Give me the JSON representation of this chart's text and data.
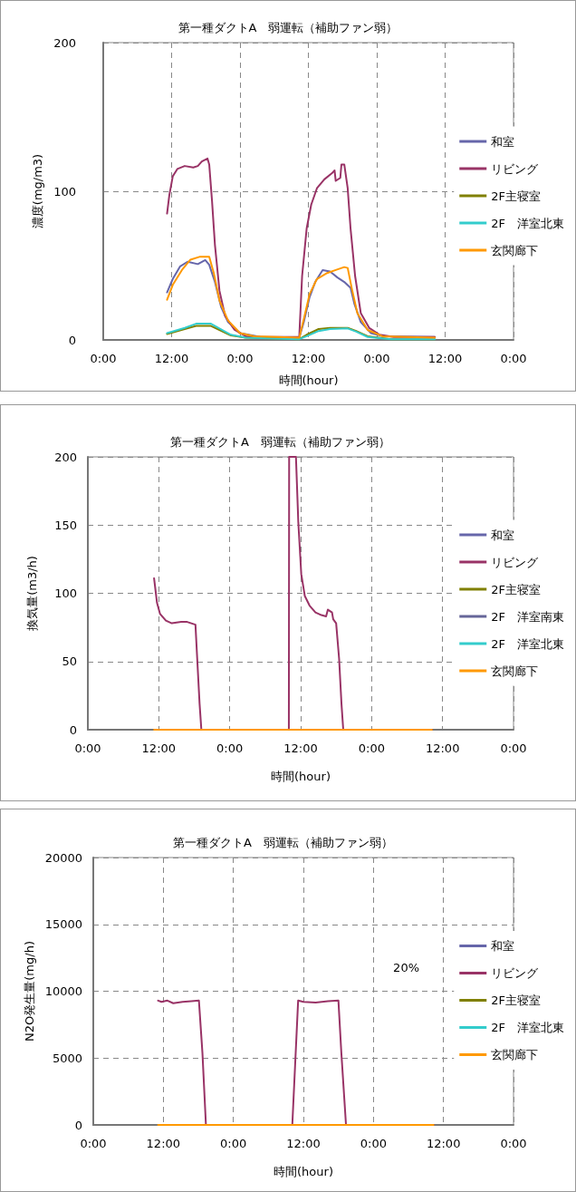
{
  "chart_data": [
    {
      "type": "line",
      "title": "第一種ダクトA　弱運転（補助ファン弱）",
      "xlabel": "時間(hour)",
      "ylabel": "濃度(mg/m3)",
      "xlim": [
        "--01-01T00:00",
        "--01-04T00:00"
      ],
      "xticks": [
        {
          "value": "--01-01T00:00",
          "label": "0:00"
        },
        {
          "value": "--01-01T12:00",
          "label": "12:00"
        },
        {
          "value": "--01-02T00:00",
          "label": "0:00"
        },
        {
          "value": "--01-02T12:00",
          "label": "12:00"
        },
        {
          "value": "--01-03T00:00",
          "label": "0:00"
        },
        {
          "value": "--01-03T12:00",
          "label": "12:00"
        },
        {
          "value": "--01-04T00:00",
          "label": "0:00"
        }
      ],
      "ylim": [
        0,
        200
      ],
      "yticks": [
        0,
        100,
        200
      ],
      "grid": true,
      "legend": "right",
      "marker": "none",
      "line_style": "solid",
      "series": [
        {
          "name": "和室",
          "color": "#6666aa",
          "x": [
            "--01-01T11:12",
            "--01-01T12:12",
            "--01-01T13:30",
            "--01-01T14:48",
            "--01-01T16:36",
            "--01-01T17:54",
            "--01-01T18:36",
            "--01-01T19:36",
            "--01-01T20:42",
            "--01-01T21:54",
            "--01-02T00:00",
            "--01-02T03:36",
            "--01-02T10:24",
            "--01-02T11:12",
            "--01-02T12:12",
            "--01-02T13:12",
            "--01-02T14:30",
            "--01-02T15:48",
            "--01-02T17:06",
            "--01-02T18:18",
            "--01-02T19:24",
            "--01-02T20:06",
            "--01-02T21:12",
            "--01-02T23:00",
            "--01-03T01:00",
            "--01-03T10:12"
          ],
          "values": [
            32,
            41,
            49.5,
            52.6,
            51,
            53.7,
            50.5,
            39,
            22,
            12,
            4.6,
            2,
            1.5,
            12,
            28.6,
            39,
            47,
            46,
            42,
            39,
            35,
            24,
            12,
            4.6,
            2.5,
            2
          ]
        },
        {
          "name": "リビング",
          "color": "#993366",
          "x": [
            "--01-01T11:12",
            "--01-01T11:36",
            "--01-01T12:12",
            "--01-01T13:00",
            "--01-01T14:18",
            "--01-01T15:48",
            "--01-01T16:36",
            "--01-01T17:18",
            "--01-01T18:18",
            "--01-01T18:36",
            "--01-01T19:06",
            "--01-01T19:36",
            "--01-01T20:24",
            "--01-01T21:24",
            "--01-01T23:00",
            "--01-02T01:00",
            "--01-02T03:36",
            "--01-02T06:36",
            "--01-02T10:24",
            "--01-02T10:54",
            "--01-02T11:42",
            "--01-02T12:30",
            "--01-02T13:30",
            "--01-02T14:48",
            "--01-02T16:06",
            "--01-02T16:36",
            "--01-02T16:48",
            "--01-02T17:36",
            "--01-02T17:48",
            "--01-02T18:18",
            "--01-02T18:54",
            "--01-02T19:24",
            "--01-02T20:12",
            "--01-02T21:12",
            "--01-02T22:42",
            "--01-03T00:30",
            "--01-03T03:00",
            "--01-03T10:12"
          ],
          "values": [
            85,
            97.5,
            110,
            115,
            117,
            116,
            117,
            120,
            122,
            118,
            93,
            64,
            33,
            16,
            7,
            2.5,
            2,
            2,
            2,
            43,
            75,
            91,
            102,
            108,
            112,
            114,
            107,
            109,
            118,
            118,
            102,
            75,
            43,
            18,
            8,
            3.5,
            2,
            2
          ]
        },
        {
          "name": "2F主寝室",
          "color": "#808000",
          "x": [
            "--01-01T11:12",
            "--01-01T14:18",
            "--01-01T16:18",
            "--01-01T18:54",
            "--01-01T20:24",
            "--01-01T22:24",
            "--01-02T01:00",
            "--01-02T10:24",
            "--01-02T11:42",
            "--01-02T13:48",
            "--01-02T15:48",
            "--01-02T18:54",
            "--01-02T20:24",
            "--01-02T22:24",
            "--01-03T02:30",
            "--01-03T10:12"
          ],
          "values": [
            4,
            7.3,
            9.4,
            9.4,
            6.7,
            3,
            1.5,
            0.5,
            3.5,
            7.3,
            8.1,
            8.1,
            6,
            2.5,
            0.5,
            0.5
          ]
        },
        {
          "name": "2F　洋室北東",
          "color": "#33cccc",
          "x": [
            "--01-01T11:12",
            "--01-01T14:18",
            "--01-01T16:18",
            "--01-01T18:54",
            "--01-01T20:24",
            "--01-01T22:24",
            "--01-02T01:00",
            "--01-02T10:24",
            "--01-02T11:42",
            "--01-02T13:48",
            "--01-02T15:48",
            "--01-02T18:54",
            "--01-02T20:24",
            "--01-02T22:24",
            "--01-03T02:30",
            "--01-03T10:12"
          ],
          "values": [
            4.6,
            8.1,
            10.9,
            10.9,
            7.7,
            3.5,
            1.5,
            0.5,
            2.5,
            6,
            7.3,
            7.7,
            5.6,
            2,
            0.5,
            0.5
          ]
        },
        {
          "name": "玄関廊下",
          "color": "#ff9900",
          "x": [
            "--01-01T11:12",
            "--01-01T12:12",
            "--01-01T13:48",
            "--01-01T15:18",
            "--01-01T17:00",
            "--01-01T18:36",
            "--01-01T19:24",
            "--01-01T20:24",
            "--01-01T21:54",
            "--01-02T00:00",
            "--01-02T02:30",
            "--01-02T10:24",
            "--01-02T11:12",
            "--01-02T12:12",
            "--01-02T13:30",
            "--01-02T15:18",
            "--01-02T16:48",
            "--01-02T18:18",
            "--01-02T18:54",
            "--01-02T19:36",
            "--01-02T20:36",
            "--01-02T22:24",
            "--01-03T01:00",
            "--01-03T10:12"
          ],
          "values": [
            27,
            37,
            47,
            54,
            56,
            56,
            45,
            26.5,
            13,
            4.6,
            2.5,
            1.5,
            14,
            30.7,
            41,
            45,
            47,
            49,
            48.4,
            35,
            18,
            6.7,
            2.5,
            1.5
          ]
        }
      ]
    },
    {
      "type": "line",
      "title": "第一種ダクトA　弱運転（補助ファン弱）",
      "xlabel": "時間(hour)",
      "ylabel": "換気量(m3/h)",
      "xlim": [
        "--01-01T00:00",
        "--01-04T00:00"
      ],
      "xticks": [
        {
          "value": "--01-01T00:00",
          "label": "0:00"
        },
        {
          "value": "--01-01T12:00",
          "label": "12:00"
        },
        {
          "value": "--01-02T00:00",
          "label": "0:00"
        },
        {
          "value": "--01-02T12:00",
          "label": "12:00"
        },
        {
          "value": "--01-03T00:00",
          "label": "0:00"
        },
        {
          "value": "--01-03T12:00",
          "label": "12:00"
        },
        {
          "value": "--01-04T00:00",
          "label": "0:00"
        }
      ],
      "ylim": [
        0,
        200
      ],
      "yticks": [
        0,
        50,
        100,
        150,
        200
      ],
      "grid": true,
      "legend": "right",
      "marker": "none",
      "line_style": "solid",
      "series": [
        {
          "name": "和室",
          "color": "#6666aa",
          "values": [
            null
          ]
        },
        {
          "name": "リビング",
          "color": "#993366",
          "x": [
            "--01-01T11:12",
            "--01-01T11:42",
            "--01-01T12:12",
            "--01-01T13:12",
            "--01-01T14:12",
            "--01-01T15:48",
            "--01-01T16:48",
            "--01-01T17:30",
            "--01-01T18:12",
            "--01-01T18:30",
            "--01-01T18:54",
            "--01-01T19:12",
            "--01-02T10:00",
            "--01-02T10:03",
            "--01-02T11:12",
            "--01-02T11:36",
            "--01-02T12:06",
            "--01-02T12:42",
            "--01-02T13:30",
            "--01-02T14:30",
            "--01-02T15:30",
            "--01-02T16:18",
            "--01-02T16:36",
            "--01-02T17:18",
            "--01-02T17:30",
            "--01-02T18:00",
            "--01-02T18:30",
            "--01-02T18:54",
            "--01-02T19:12",
            "--01-03T10:12"
          ],
          "values": [
            111,
            93,
            85,
            80,
            78,
            79,
            79,
            78,
            77,
            52,
            19,
            0,
            0,
            200,
            200,
            152,
            114,
            98,
            91,
            86,
            84,
            83,
            88,
            86,
            81,
            78,
            52,
            19,
            0,
            0
          ]
        },
        {
          "name": "2F主寝室",
          "color": "#808000",
          "values": [
            null
          ]
        },
        {
          "name": "2F　洋室南東",
          "color": "#666699",
          "values": [
            null
          ]
        },
        {
          "name": "2F　洋室北東",
          "color": "#33cccc",
          "values": [
            null
          ]
        },
        {
          "name": "玄関廊下",
          "color": "#ff9900",
          "x": [
            "--01-01T11:12",
            "--01-03T10:12"
          ],
          "values": [
            0,
            0
          ]
        }
      ]
    },
    {
      "type": "line",
      "title": "第一種ダクトA　弱運転（補助ファン弱）",
      "xlabel": "時間(hour)",
      "ylabel": "N2O発生量(mg/h)",
      "xlim": [
        "--01-01T00:00",
        "--01-04T00:00"
      ],
      "xticks": [
        {
          "value": "--01-01T00:00",
          "label": "0:00"
        },
        {
          "value": "--01-01T12:00",
          "label": "12:00"
        },
        {
          "value": "--01-02T00:00",
          "label": "0:00"
        },
        {
          "value": "--01-02T12:00",
          "label": "12:00"
        },
        {
          "value": "--01-03T00:00",
          "label": "0:00"
        },
        {
          "value": "--01-03T12:00",
          "label": "12:00"
        },
        {
          "value": "--01-04T00:00",
          "label": "0:00"
        }
      ],
      "ylim": [
        0,
        20000
      ],
      "yticks": [
        0,
        5000,
        10000,
        15000,
        20000
      ],
      "grid": true,
      "legend": "right",
      "marker": "none",
      "line_style": "solid",
      "annotations": [
        "20%"
      ],
      "series": [
        {
          "name": "和室",
          "color": "#6666aa",
          "values": [
            null
          ]
        },
        {
          "name": "リビング",
          "color": "#993366",
          "x": [
            "--01-01T11:06",
            "--01-01T11:42",
            "--01-01T12:42",
            "--01-01T13:42",
            "--01-01T15:18",
            "--01-01T16:48",
            "--01-01T18:06",
            "--01-01T18:42",
            "--01-01T19:18",
            "--01-02T10:06",
            "--01-02T11:06",
            "--01-02T12:00",
            "--01-02T14:06",
            "--01-02T16:12",
            "--01-02T18:00",
            "--01-02T18:30",
            "--01-02T19:18",
            "--01-03T10:18"
          ],
          "values": [
            9300,
            9200,
            9300,
            9100,
            9200,
            9250,
            9300,
            5400,
            0,
            0,
            9300,
            9200,
            9150,
            9250,
            9300,
            5400,
            0,
            0
          ]
        },
        {
          "name": "2F主寝室",
          "color": "#808000",
          "values": [
            null
          ]
        },
        {
          "name": "2F　洋室北東",
          "color": "#33cccc",
          "values": [
            null
          ]
        },
        {
          "name": "玄関廊下",
          "color": "#ff9900",
          "x": [
            "--01-01T11:06",
            "--01-03T10:18"
          ],
          "values": [
            0,
            0
          ]
        }
      ]
    }
  ]
}
